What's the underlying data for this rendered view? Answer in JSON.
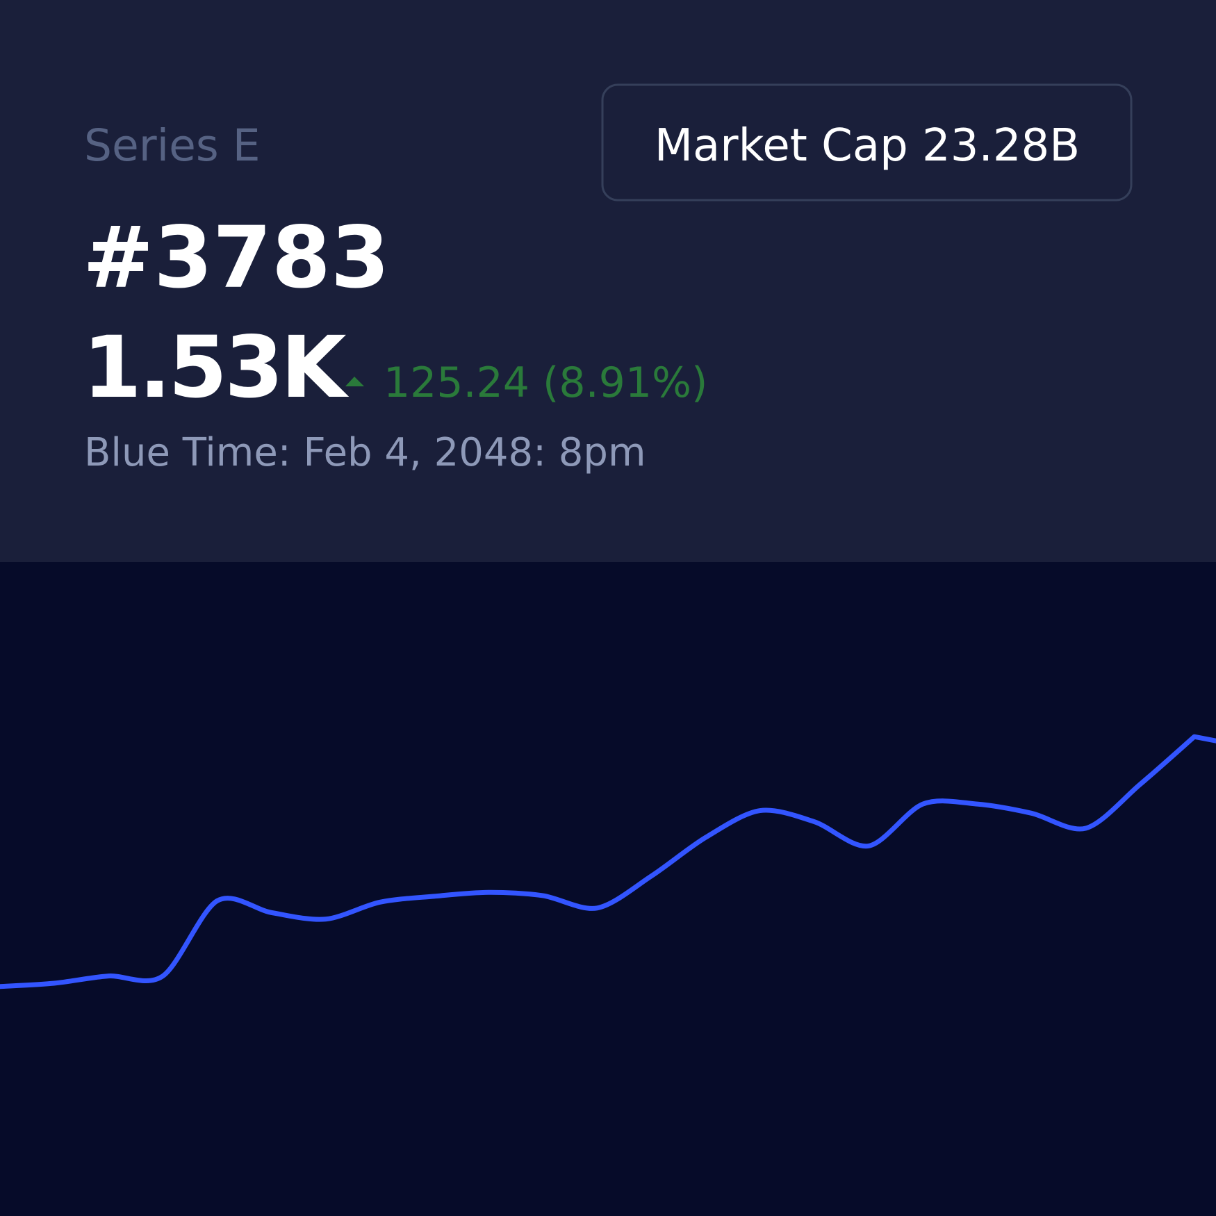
{
  "header": {
    "series_label": "Series E",
    "id": "#3783",
    "price": "1.53K",
    "change": "125.24 (8.91%)",
    "time": "Blue Time: Feb 4, 2048: 8pm",
    "market_cap": "Market Cap 23.28B"
  },
  "chart_data": {
    "type": "line",
    "color": "#3355ff",
    "values": [
      35.1,
      35.6,
      36.7,
      36.7,
      48.2,
      46.4,
      45.4,
      48.0,
      48.9,
      49.5,
      49.0,
      47.1,
      52.0,
      57.9,
      62.0,
      60.3,
      56.6,
      63.0,
      63.0,
      61.6,
      59.3,
      66.0,
      73.3
    ],
    "ylim": [
      0,
      100
    ]
  }
}
